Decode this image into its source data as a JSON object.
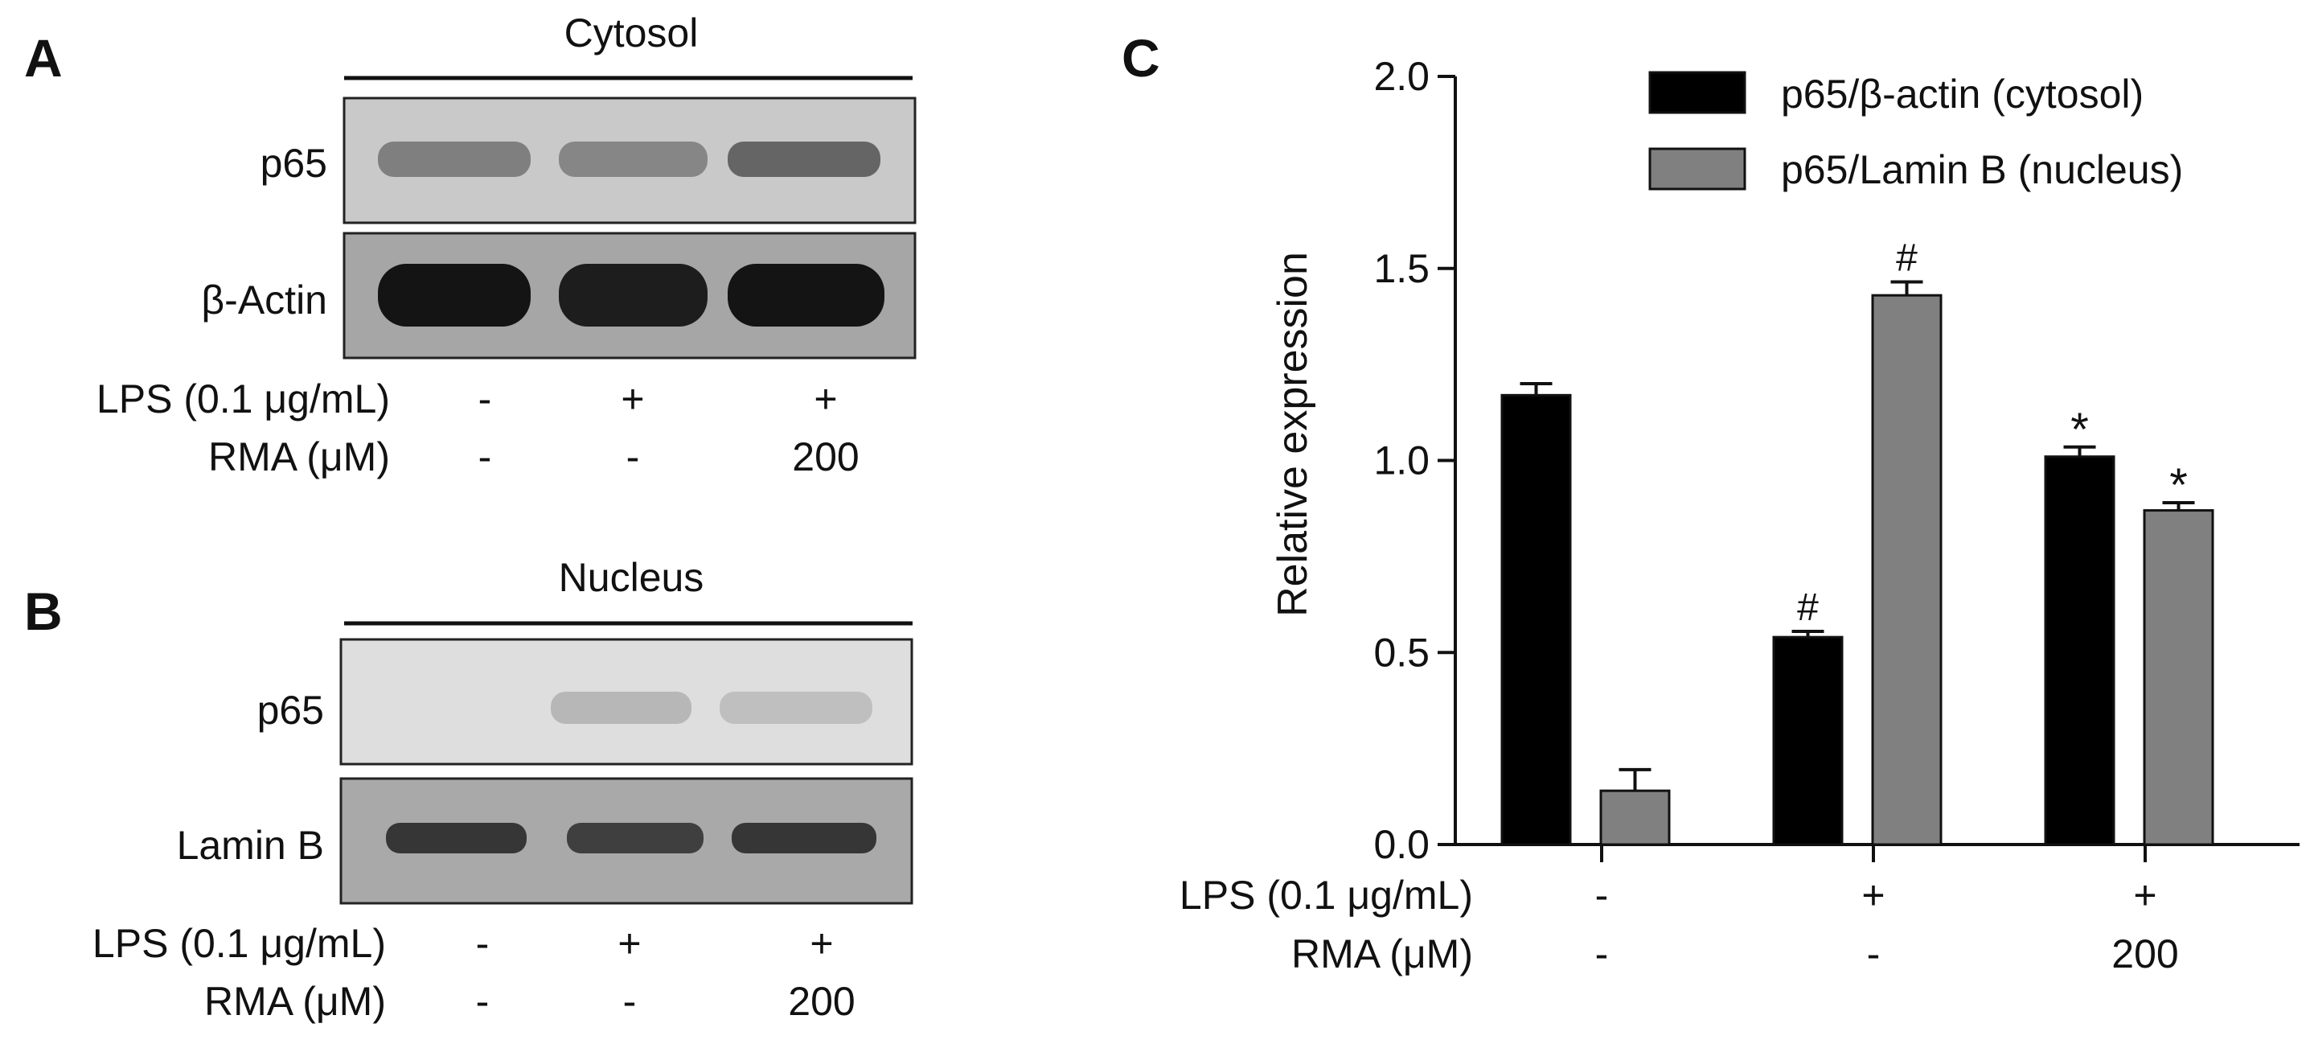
{
  "panels": {
    "A": {
      "letter": "A",
      "header": "Cytosol",
      "blots": [
        {
          "label": "p65",
          "lane_intensity": [
            0.45,
            0.42,
            0.55
          ]
        },
        {
          "label": "β-Actin",
          "lane_intensity": [
            1.0,
            0.95,
            1.0
          ]
        }
      ],
      "conditions": [
        {
          "label": "LPS (0.1 μg/mL)",
          "values": [
            "-",
            "+",
            "+"
          ]
        },
        {
          "label": "RMA (μM)",
          "values": [
            "-",
            "-",
            "200"
          ]
        }
      ]
    },
    "B": {
      "letter": "B",
      "header": "Nucleus",
      "blots": [
        {
          "label": "p65",
          "lane_intensity": [
            0.02,
            0.2,
            0.15
          ]
        },
        {
          "label": "Lamin B",
          "lane_intensity": [
            0.8,
            0.75,
            0.8
          ]
        }
      ],
      "conditions": [
        {
          "label": "LPS (0.1 μg/mL)",
          "values": [
            "-",
            "+",
            "+"
          ]
        },
        {
          "label": "RMA (μM)",
          "values": [
            "-",
            "-",
            "200"
          ]
        }
      ]
    },
    "C": {
      "letter": "C",
      "conditions": [
        {
          "label": "LPS (0.1 μg/mL)",
          "values": [
            "-",
            "+",
            "+"
          ]
        },
        {
          "label": "RMA (μM)",
          "values": [
            "-",
            "-",
            "200"
          ]
        }
      ]
    }
  },
  "chart_data": {
    "type": "bar",
    "ylabel": "Relative expression",
    "ylim": [
      0,
      2.0
    ],
    "yticks": [
      "0.0",
      "0.5",
      "1.0",
      "1.5",
      "2.0"
    ],
    "grid": false,
    "legend_position": "top-right",
    "groups": 3,
    "series": [
      {
        "name": "p65/β-actin (cytosol)",
        "color": "#000000",
        "values": [
          1.17,
          0.54,
          1.01
        ],
        "errors": [
          0.03,
          0.015,
          0.025
        ],
        "marks": [
          "",
          "#",
          "*"
        ]
      },
      {
        "name": "p65/Lamin B (nucleus)",
        "color": "#808080",
        "values": [
          0.14,
          1.43,
          0.87
        ],
        "errors": [
          0.055,
          0.035,
          0.02
        ],
        "marks": [
          "",
          "#",
          "*"
        ]
      }
    ]
  }
}
